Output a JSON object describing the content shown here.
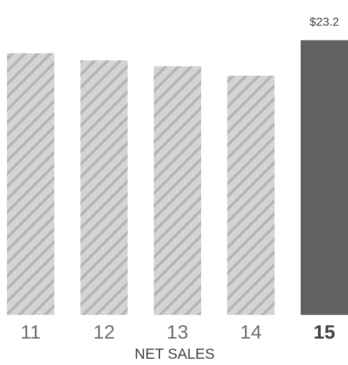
{
  "chart_data": {
    "type": "bar",
    "title": "",
    "xlabel": "NET SALES",
    "ylabel": "",
    "categories": [
      "11",
      "12",
      "13",
      "14",
      "15"
    ],
    "values": [
      22.1,
      21.5,
      21.0,
      20.2,
      23.2
    ],
    "value_labels": [
      "",
      "",
      "",
      "",
      "$23.2"
    ],
    "highlight_index": 4,
    "ylim": [
      0,
      23.6
    ],
    "grid": false,
    "legend": "none",
    "colors": {
      "hatched_fill": "#d5d4d4",
      "hatched_stripe": "#b5b4b4",
      "highlight_fill": "#616164"
    }
  }
}
